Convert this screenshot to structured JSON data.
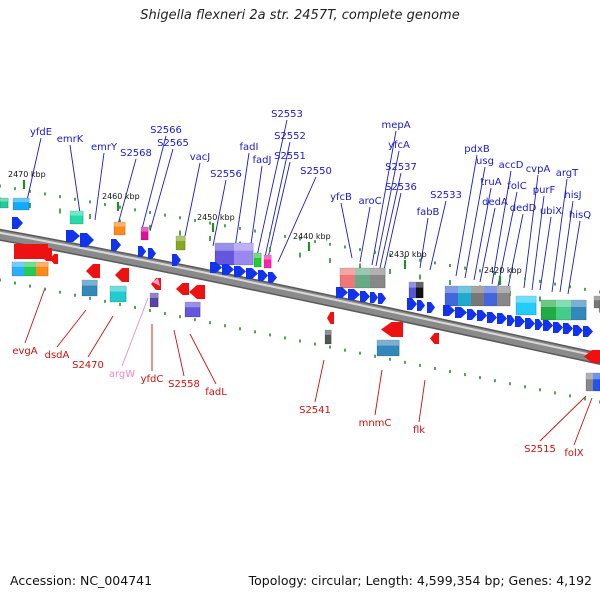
{
  "title": "Shigella flexneri 2a str. 2457T, complete genome",
  "footer": {
    "accession": "Accession: NC_004741",
    "topology": "Topology: circular; Length: 4,599,354 bp; Genes: 4,192"
  },
  "colors": {
    "backbone": "#8a8a8a",
    "forward_label": "#1a1acc",
    "reverse_label": "#cc1111",
    "rna_label": "#ee88cc",
    "tick": "#2a8a2a",
    "forward_gene": "#1133ee",
    "reverse_gene": "#ee1111"
  },
  "scale": {
    "ticks": [
      "2470 kbp",
      "2460 kbp",
      "2450 kbp",
      "2440 kbp",
      "2430 kbp",
      "2420 kbp"
    ]
  },
  "forward_labels": [
    "yfdE",
    "emrK",
    "emrY",
    "S2568",
    "S2566",
    "S2565",
    "vacJ",
    "S2556",
    "fadI",
    "fadJ",
    "S2553",
    "S2552",
    "S2551",
    "S2550",
    "yfcB",
    "aroC",
    "mepA",
    "yfcA",
    "S2537",
    "S2536",
    "fabB",
    "S2533",
    "pdxB",
    "usg",
    "truA",
    "dedA",
    "accD",
    "folC",
    "dedD",
    "cvpA",
    "purF",
    "ubiX",
    "argT",
    "hisJ",
    "hisQ"
  ],
  "reverse_labels": [
    "evgA",
    "dsdA",
    "S2470",
    "argW",
    "yfdC",
    "S2558",
    "fadL",
    "S2541",
    "mnmC",
    "flk",
    "S2515",
    "folX"
  ]
}
